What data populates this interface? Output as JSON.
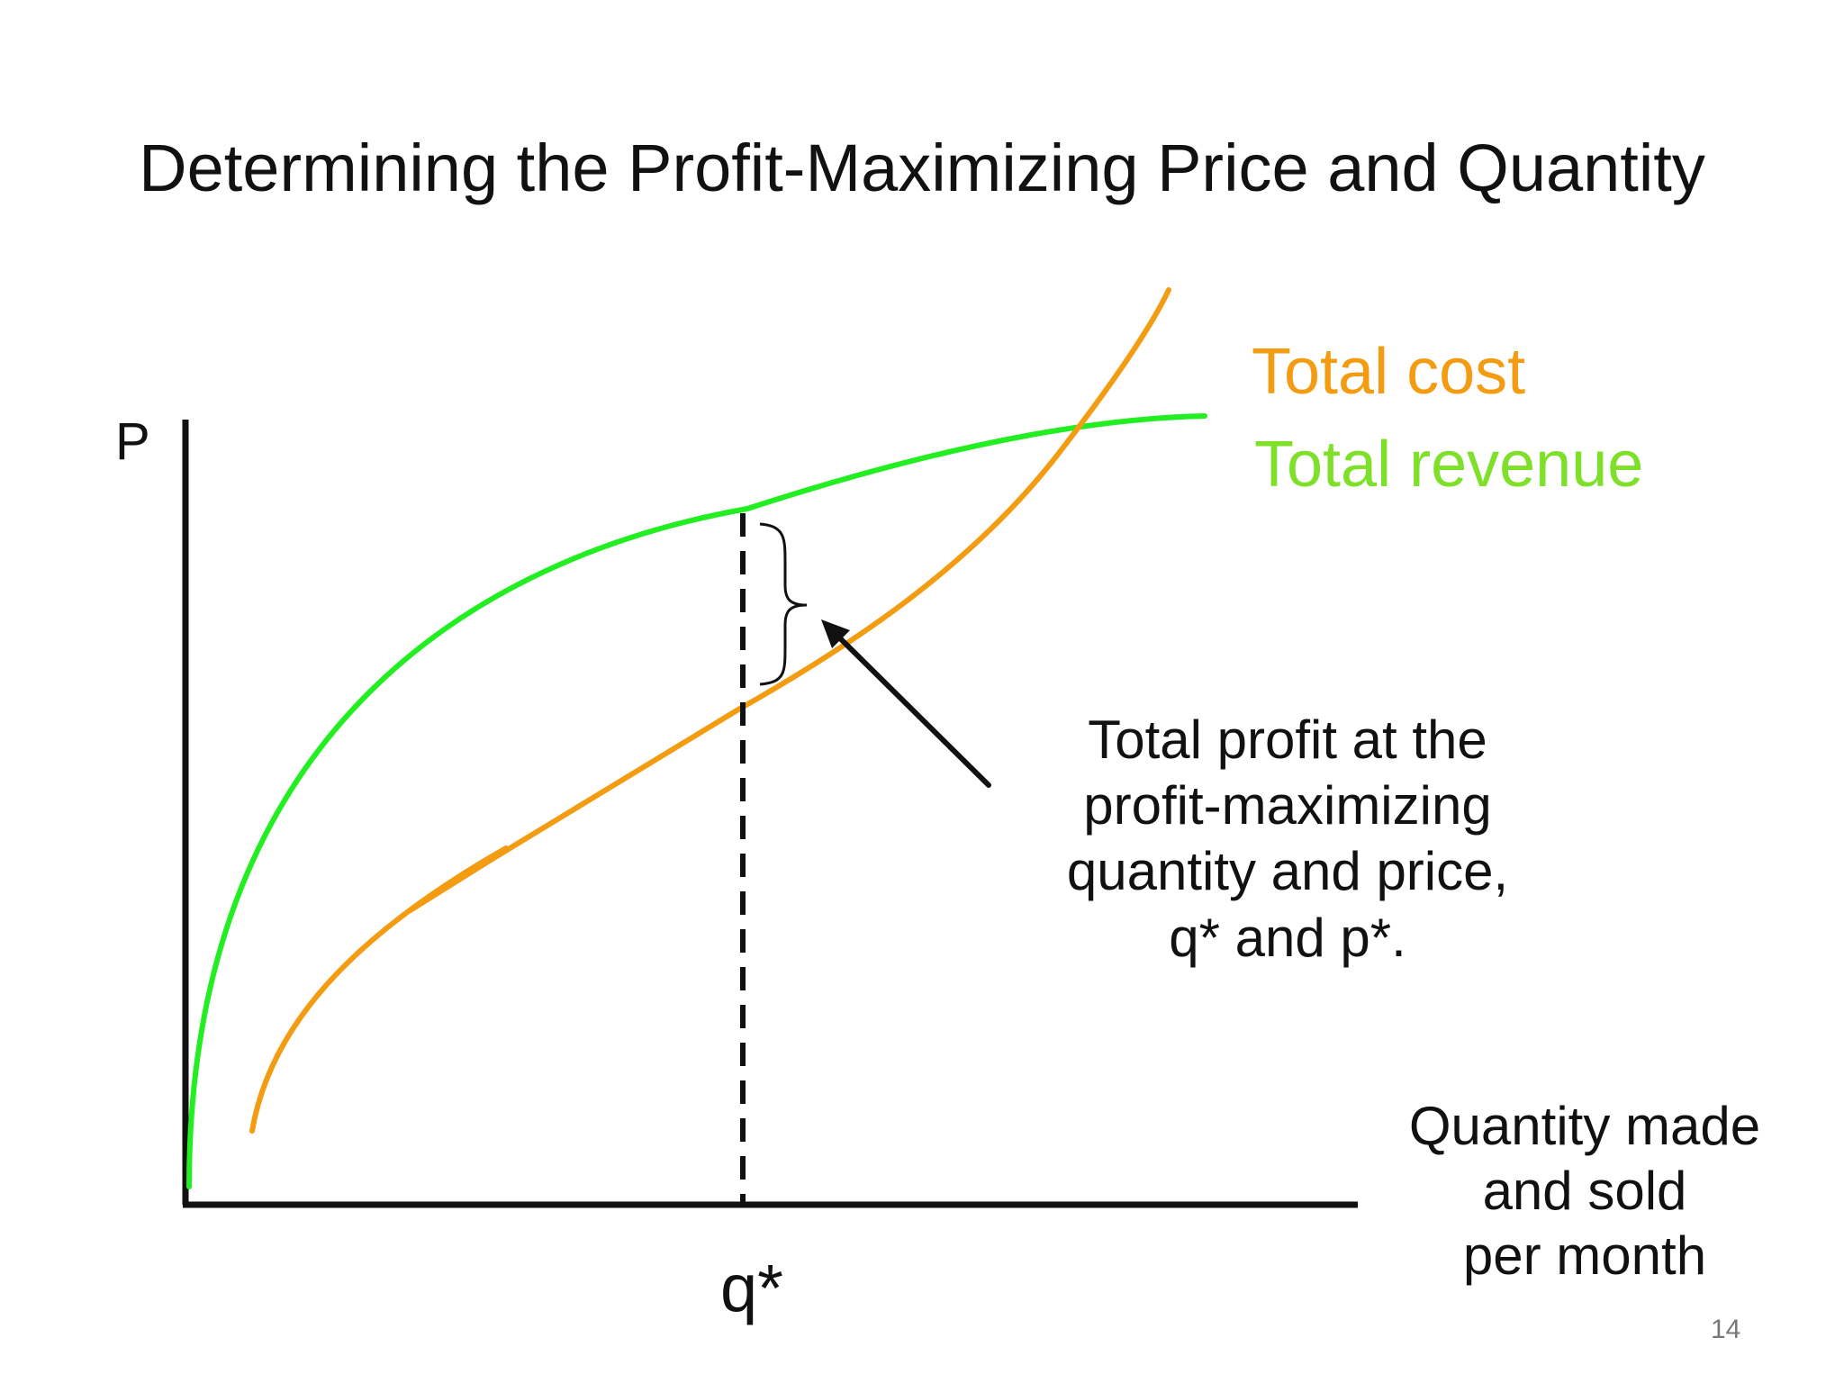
{
  "slide": {
    "title": "Determining the Profit-Maximizing Price and Quantity",
    "page_number": "14"
  },
  "diagram": {
    "y_axis_label": "P",
    "x_axis_label_lines": [
      "Quantity made",
      "and sold",
      "per month"
    ],
    "q_star_label": "q*",
    "legend": {
      "total_cost": "Total cost",
      "total_revenue": "Total revenue"
    },
    "annotation_lines": [
      "Total profit at the",
      "profit-maximizing",
      "quantity and price,",
      "q* and p*."
    ],
    "colors": {
      "total_cost": "#f39c12",
      "total_revenue": "#22ee22",
      "total_revenue_label": "#7fe02a",
      "axes": "#111111"
    }
  }
}
